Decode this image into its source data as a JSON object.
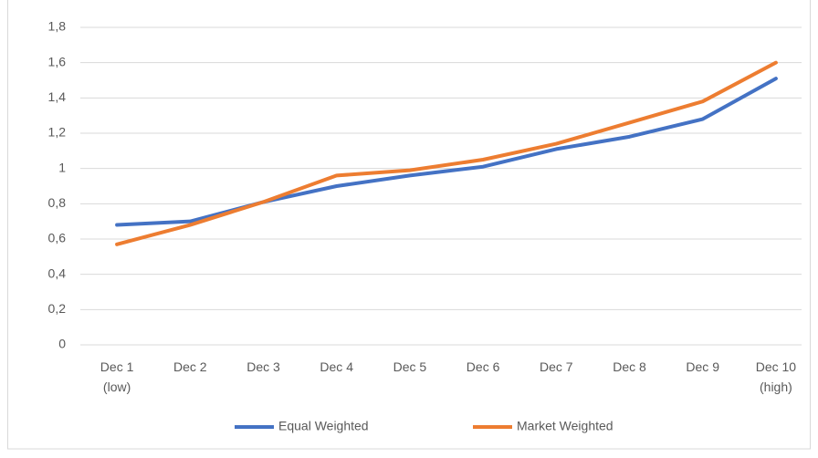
{
  "chart_data": {
    "type": "line",
    "categories": [
      "Dec 1\n(low)",
      "Dec 2",
      "Dec 3",
      "Dec 4",
      "Dec 5",
      "Dec 6",
      "Dec 7",
      "Dec 8",
      "Dec 9",
      "Dec 10\n(high)"
    ],
    "series": [
      {
        "name": "Equal Weighted",
        "color": "#4472c4",
        "values": [
          0.68,
          0.7,
          0.81,
          0.9,
          0.96,
          1.01,
          1.11,
          1.18,
          1.28,
          1.51
        ]
      },
      {
        "name": "Market Weighted",
        "color": "#ed7d31",
        "values": [
          0.57,
          0.68,
          0.81,
          0.96,
          0.99,
          1.05,
          1.14,
          1.26,
          1.38,
          1.6
        ]
      }
    ],
    "ylim": [
      0,
      1.8
    ],
    "yticks": [
      0,
      {
        "value": 0.2,
        "label": "0,2"
      },
      {
        "value": 0.4,
        "label": "0,4"
      },
      {
        "value": 0.6,
        "label": "0,6"
      },
      {
        "value": 0.8,
        "label": "0,8"
      },
      1,
      {
        "value": 1.2,
        "label": "1,2"
      },
      {
        "value": 1.4,
        "label": "1,4"
      },
      {
        "value": 1.6,
        "label": "1,6"
      },
      {
        "value": 1.8,
        "label": "1,8"
      }
    ],
    "grid": true,
    "legend": "bottom"
  }
}
